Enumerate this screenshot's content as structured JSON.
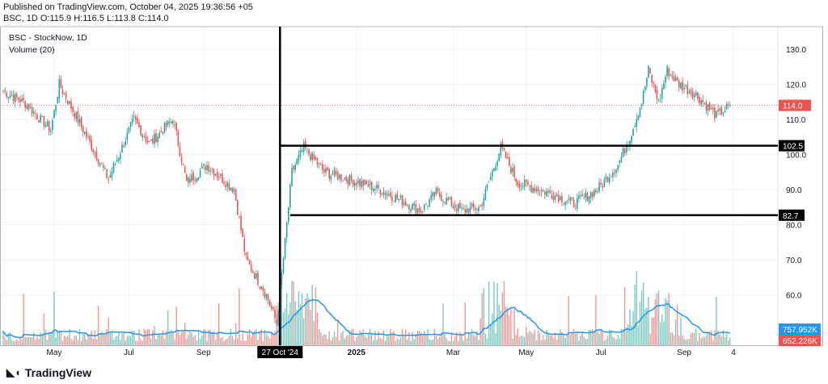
{
  "header": {
    "published": "Published on TradingView.com, October 04, 2025 19:36:56 +05",
    "ohlc": "BSC, 1D  O:115.9 H:116.5 L:113.8 C:114.0"
  },
  "legend": {
    "title": "BSC - StockNow, 1D",
    "volume": "Volume (20)"
  },
  "brand": "TradingView",
  "colors": {
    "up": "#26a69a",
    "down": "#ef5350",
    "ma": "#2196f3",
    "line": "#000000"
  },
  "chart_data": {
    "type": "candlestick",
    "price_ticks": [
      "130.0",
      "120.0",
      "110.0",
      "100.0",
      "90.0",
      "80.0",
      "70.0",
      "60.0"
    ],
    "price_tick_values": [
      130,
      120,
      110,
      100,
      90,
      80,
      70,
      60
    ],
    "price_range": [
      57,
      135
    ],
    "time_ticks": [
      {
        "label": "May",
        "bar": 30
      },
      {
        "label": "Jul",
        "bar": 74
      },
      {
        "label": "Sep",
        "bar": 118
      },
      {
        "label": "2025",
        "bar": 208
      },
      {
        "label": "Mar",
        "bar": 265
      },
      {
        "label": "May",
        "bar": 308
      },
      {
        "label": "Jul",
        "bar": 352
      },
      {
        "label": "Sep",
        "bar": 401
      },
      {
        "label": "4",
        "bar": 430
      }
    ],
    "highlight_date": {
      "label": "27 Oct '24",
      "bar": 163
    },
    "anchors": [
      [
        0,
        118
      ],
      [
        12,
        115
      ],
      [
        28,
        107
      ],
      [
        33,
        120
      ],
      [
        46,
        108
      ],
      [
        62,
        93
      ],
      [
        77,
        110
      ],
      [
        86,
        103
      ],
      [
        100,
        110
      ],
      [
        108,
        92
      ],
      [
        120,
        97
      ],
      [
        136,
        90
      ],
      [
        143,
        70
      ],
      [
        155,
        60
      ],
      [
        161,
        52
      ],
      [
        166,
        75
      ],
      [
        170,
        95
      ],
      [
        177,
        102
      ],
      [
        189,
        95
      ],
      [
        203,
        93
      ],
      [
        222,
        90
      ],
      [
        246,
        84
      ],
      [
        255,
        89
      ],
      [
        270,
        84
      ],
      [
        281,
        85
      ],
      [
        288,
        95
      ],
      [
        293,
        102
      ],
      [
        303,
        92
      ],
      [
        322,
        89
      ],
      [
        336,
        86
      ],
      [
        350,
        90
      ],
      [
        362,
        97
      ],
      [
        369,
        105
      ],
      [
        376,
        115
      ],
      [
        380,
        124
      ],
      [
        386,
        115
      ],
      [
        391,
        124
      ],
      [
        398,
        120
      ],
      [
        408,
        117
      ],
      [
        420,
        111
      ],
      [
        428,
        114
      ]
    ],
    "horizontal_levels": [
      {
        "value": 102.5,
        "label": "102.5",
        "from_bar": 163
      },
      {
        "value": 82.7,
        "label": "82.7",
        "from_bar": 169
      }
    ],
    "last_price": {
      "value": 114.0,
      "label": "114.0"
    },
    "volume_labels": {
      "ma": "757.952K",
      "volume": "652.226K"
    }
  }
}
